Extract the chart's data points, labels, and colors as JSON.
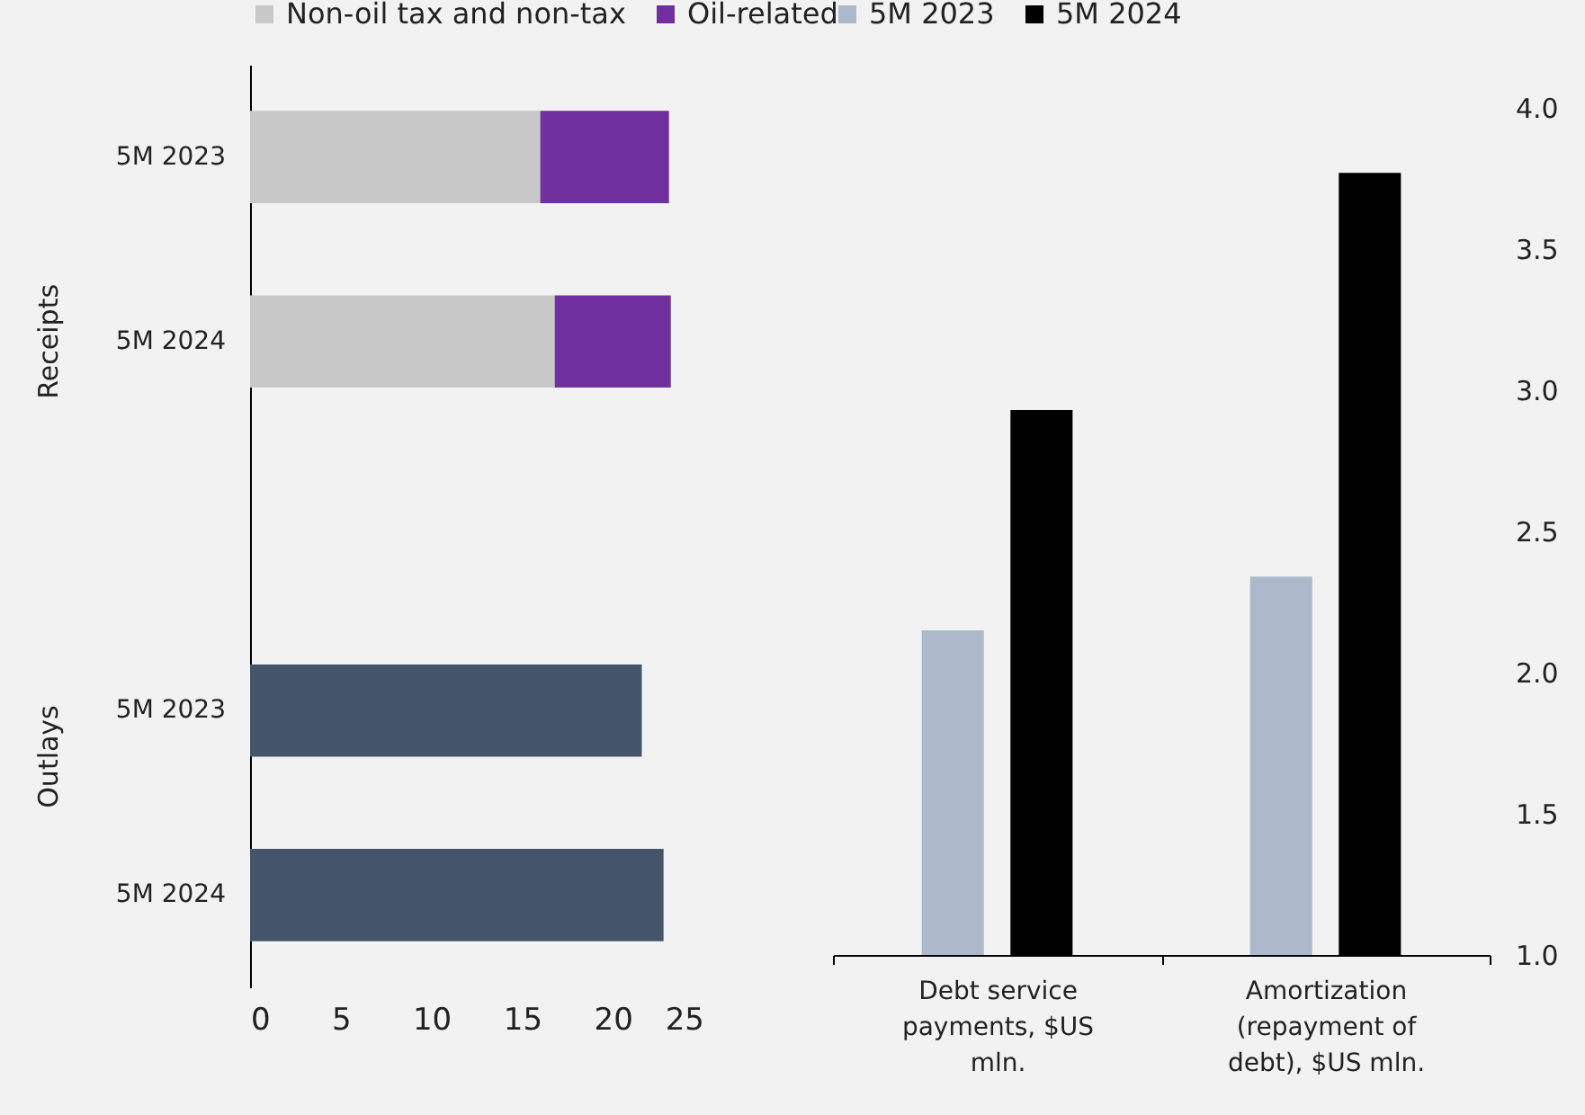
{
  "chart_data": [
    {
      "type": "bar",
      "orientation": "horizontal",
      "stacked": true,
      "categories": [
        "5M 2023",
        "5M 2024",
        null,
        "5M 2023",
        "5M 2024"
      ],
      "series": [
        {
          "name": "Non-oil tax and non-tax",
          "color": "#c8c8c8",
          "values": [
            16.0,
            16.8,
            null,
            null,
            null
          ]
        },
        {
          "name": "Oil-related",
          "color": "#7030a0",
          "values": [
            7.1,
            6.4,
            null,
            null,
            null
          ]
        },
        {
          "color": "#44546a",
          "values": [
            null,
            null,
            null,
            21.6,
            22.8
          ]
        }
      ],
      "xlim": [
        0,
        25
      ],
      "xticks": [
        0,
        5,
        10,
        15,
        20,
        25
      ],
      "legend": "top",
      "annotations": [
        "Receipts",
        "Outlays"
      ]
    },
    {
      "type": "bar",
      "categories": [
        "Debt service payments, $US mln.",
        "Amortization (repayment of debt), $US mln."
      ],
      "series": [
        {
          "name": "5M 2023",
          "color": "#adb9ca",
          "values": [
            2.15,
            2.34
          ]
        },
        {
          "name": "5M 2024",
          "color": "#000000",
          "values": [
            2.93,
            3.77
          ]
        }
      ],
      "ylim": [
        1,
        4
      ],
      "yticks": [
        {
          "value": 1,
          "label": "1.0"
        },
        {
          "value": 1.5,
          "label": "1.5"
        },
        {
          "value": 2,
          "label": "2.0"
        },
        {
          "value": 2.5,
          "label": "2.5"
        },
        {
          "value": 3,
          "label": "3.0"
        },
        {
          "value": 3.5,
          "label": "3.5"
        },
        {
          "value": 4,
          "label": "4.0"
        }
      ],
      "legend": "top"
    }
  ]
}
